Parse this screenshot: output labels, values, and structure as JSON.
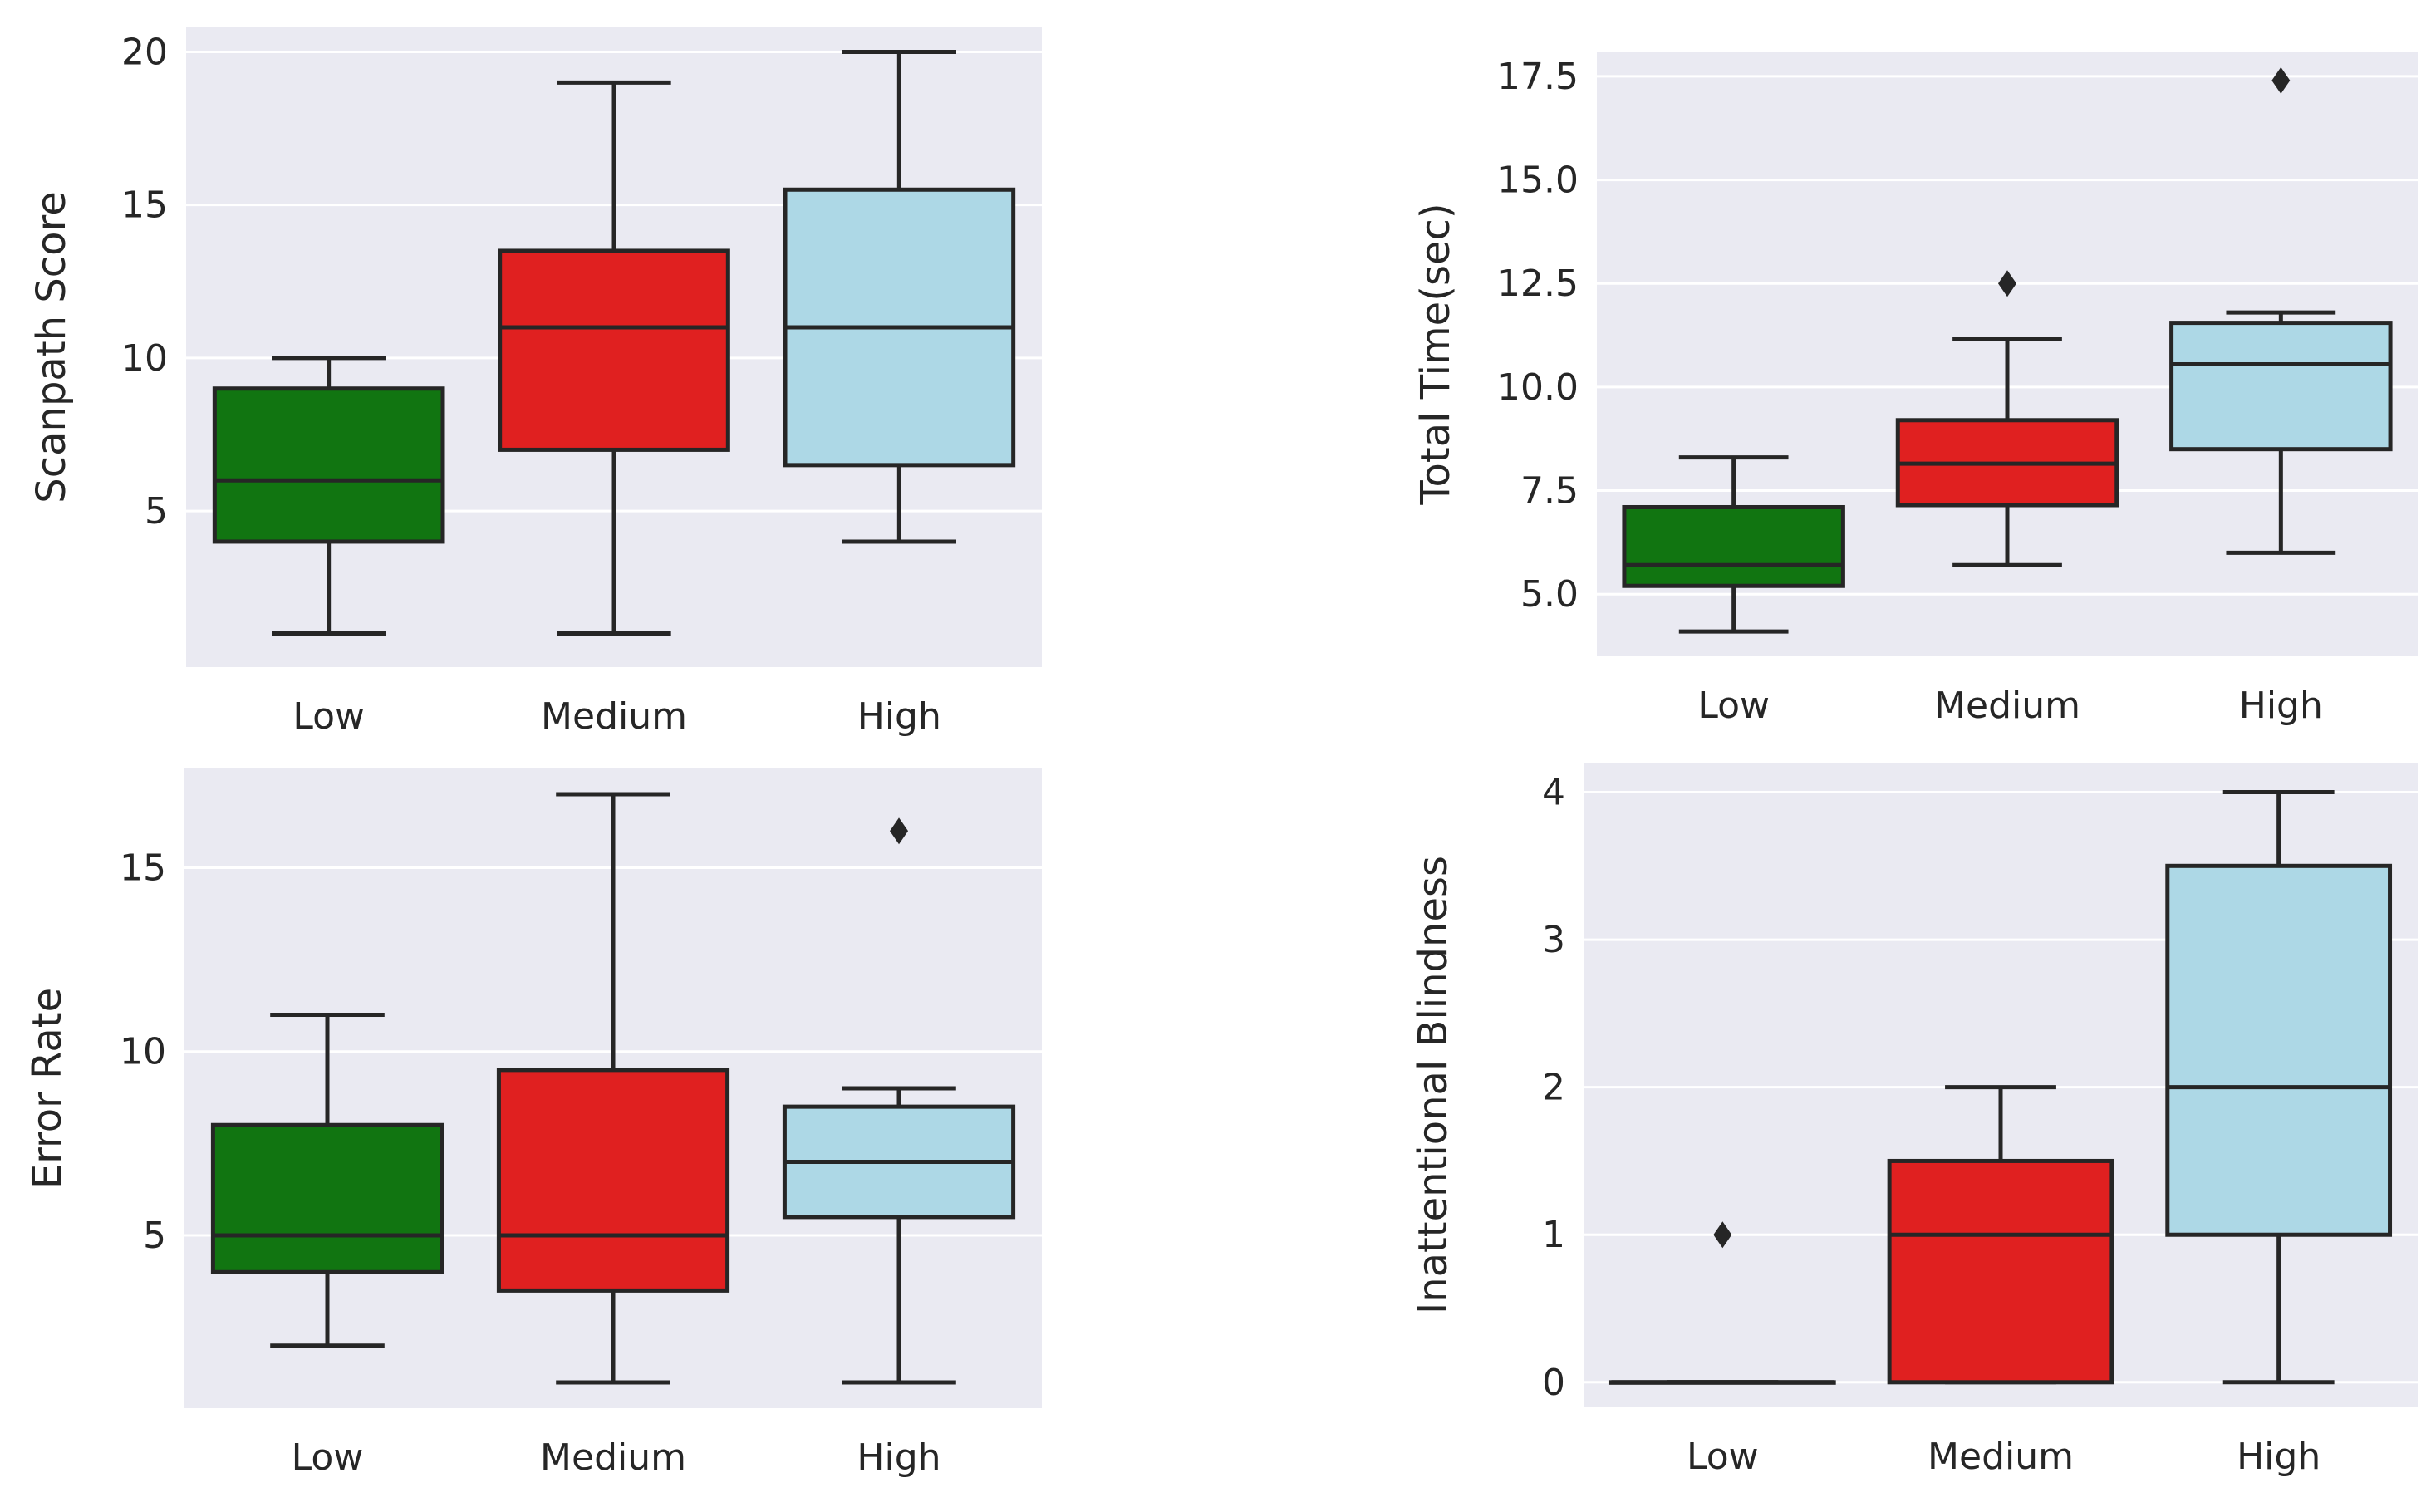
{
  "colors": {
    "Low": "#117511",
    "Medium": "#e02020",
    "High": "#add8e6",
    "background": "#eaeaf2",
    "grid": "#ffffff",
    "line": "#262626"
  },
  "chart_data": [
    {
      "type": "box",
      "id": "scanpath",
      "ylabel": "Scanpath Score",
      "categories": [
        "Low",
        "Medium",
        "High"
      ],
      "yticks": [
        5,
        10,
        15,
        20
      ],
      "tick_labels": [
        "5",
        "10",
        "15",
        "20"
      ],
      "ylim": [
        -0.1,
        20.8
      ],
      "boxes": [
        {
          "category": "Low",
          "whislo": 1,
          "q1": 4,
          "median": 6,
          "q3": 9,
          "whishi": 10,
          "fliers": []
        },
        {
          "category": "Medium",
          "whislo": 1,
          "q1": 7,
          "median": 11,
          "q3": 13.5,
          "whishi": 19,
          "fliers": []
        },
        {
          "category": "High",
          "whislo": 4,
          "q1": 6.5,
          "median": 11,
          "q3": 15.5,
          "whishi": 20,
          "fliers": []
        }
      ]
    },
    {
      "type": "box",
      "id": "total-time",
      "ylabel": "Total Time(sec)",
      "categories": [
        "Low",
        "Medium",
        "High"
      ],
      "yticks": [
        5.0,
        7.5,
        10.0,
        12.5,
        15.0,
        17.5
      ],
      "tick_labels": [
        "5.0",
        "7.5",
        "10.0",
        "12.5",
        "15.0",
        "17.5"
      ],
      "ylim": [
        3.5,
        18.1
      ],
      "boxes": [
        {
          "category": "Low",
          "whislo": 4.1,
          "q1": 5.2,
          "median": 5.7,
          "q3": 7.1,
          "whishi": 8.3,
          "fliers": []
        },
        {
          "category": "Medium",
          "whislo": 5.7,
          "q1": 7.15,
          "median": 8.15,
          "q3": 9.2,
          "whishi": 11.15,
          "fliers": [
            12.5
          ]
        },
        {
          "category": "High",
          "whislo": 6.0,
          "q1": 8.5,
          "median": 10.55,
          "q3": 11.55,
          "whishi": 11.8,
          "fliers": [
            17.4
          ]
        }
      ]
    },
    {
      "type": "box",
      "id": "error-rate",
      "ylabel": "Error Rate",
      "categories": [
        "Low",
        "Medium",
        "High"
      ],
      "yticks": [
        5,
        10,
        15
      ],
      "tick_labels": [
        "5",
        "10",
        "15"
      ],
      "ylim": [
        0.3,
        17.7
      ],
      "boxes": [
        {
          "category": "Low",
          "whislo": 2,
          "q1": 4,
          "median": 5,
          "q3": 8,
          "whishi": 11,
          "fliers": []
        },
        {
          "category": "Medium",
          "whislo": 1,
          "q1": 3.5,
          "median": 5,
          "q3": 9.5,
          "whishi": 17,
          "fliers": []
        },
        {
          "category": "High",
          "whislo": 1,
          "q1": 5.5,
          "median": 7,
          "q3": 8.5,
          "whishi": 9,
          "fliers": [
            16
          ]
        }
      ]
    },
    {
      "type": "box",
      "id": "inattentional-blindness",
      "ylabel": "Inattentional Blindness",
      "categories": [
        "Low",
        "Medium",
        "High"
      ],
      "yticks": [
        0,
        1,
        2,
        3,
        4
      ],
      "tick_labels": [
        "0",
        "1",
        "2",
        "3",
        "4"
      ],
      "ylim": [
        -0.17,
        4.2
      ],
      "boxes": [
        {
          "category": "Low",
          "whislo": 0,
          "q1": 0,
          "median": 0,
          "q3": 0,
          "whishi": 0,
          "fliers": [
            1
          ]
        },
        {
          "category": "Medium",
          "whislo": 0,
          "q1": 0,
          "median": 1,
          "q3": 1.5,
          "whishi": 2,
          "fliers": []
        },
        {
          "category": "High",
          "whislo": 0,
          "q1": 1,
          "median": 2,
          "q3": 3.5,
          "whishi": 4,
          "fliers": []
        }
      ]
    }
  ]
}
